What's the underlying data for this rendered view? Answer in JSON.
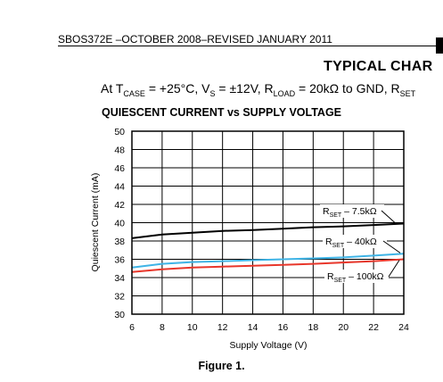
{
  "page": {
    "doc_id": "SBOS372E –OCTOBER 2008–REVISED JANUARY 2011",
    "section_title": "TYPICAL CHAR",
    "conditions": {
      "prefix": "At T",
      "t_sub": "CASE",
      "part2": " = +25°C, V",
      "v_sub": "S",
      "part3": " = ±12V, R",
      "r_sub": "LOAD",
      "part4": " = 20kΩ to GND, R",
      "rset_sub": "SET"
    },
    "figure_caption": "Figure 1."
  },
  "chart_data": {
    "type": "line",
    "title": "QUIESCENT CURRENT vs SUPPLY VOLTAGE",
    "xlabel": "Supply Voltage (V)",
    "ylabel": "Quiescent Current (mA)",
    "xlim": [
      6,
      24
    ],
    "ylim": [
      30,
      50
    ],
    "x_ticks": [
      6,
      8,
      10,
      12,
      14,
      16,
      18,
      20,
      22,
      24
    ],
    "y_ticks": [
      30,
      32,
      34,
      36,
      38,
      40,
      42,
      44,
      46,
      48,
      50
    ],
    "grid": true,
    "x": [
      6,
      8,
      10,
      12,
      14,
      16,
      18,
      20,
      22,
      24
    ],
    "series": [
      {
        "name": "R_SET – 7.5kΩ",
        "label_main": "R",
        "label_sub": "SET",
        "label_rest": " – 7.5kΩ",
        "color": "#000000",
        "values": [
          38.3,
          38.7,
          38.9,
          39.1,
          39.2,
          39.35,
          39.5,
          39.6,
          39.75,
          39.9
        ]
      },
      {
        "name": "R_SET – 40kΩ",
        "label_main": "R",
        "label_sub": "SET",
        "label_rest": " – 40kΩ",
        "color": "#3fb4e6",
        "values": [
          35.1,
          35.5,
          35.7,
          35.8,
          35.9,
          36.0,
          36.1,
          36.2,
          36.4,
          36.6
        ]
      },
      {
        "name": "R_SET – 100kΩ",
        "label_main": "R",
        "label_sub": "SET",
        "label_rest": " – 100kΩ",
        "color": "#e8372b",
        "values": [
          34.6,
          34.9,
          35.1,
          35.2,
          35.3,
          35.4,
          35.5,
          35.65,
          35.8,
          36.0
        ]
      }
    ]
  }
}
